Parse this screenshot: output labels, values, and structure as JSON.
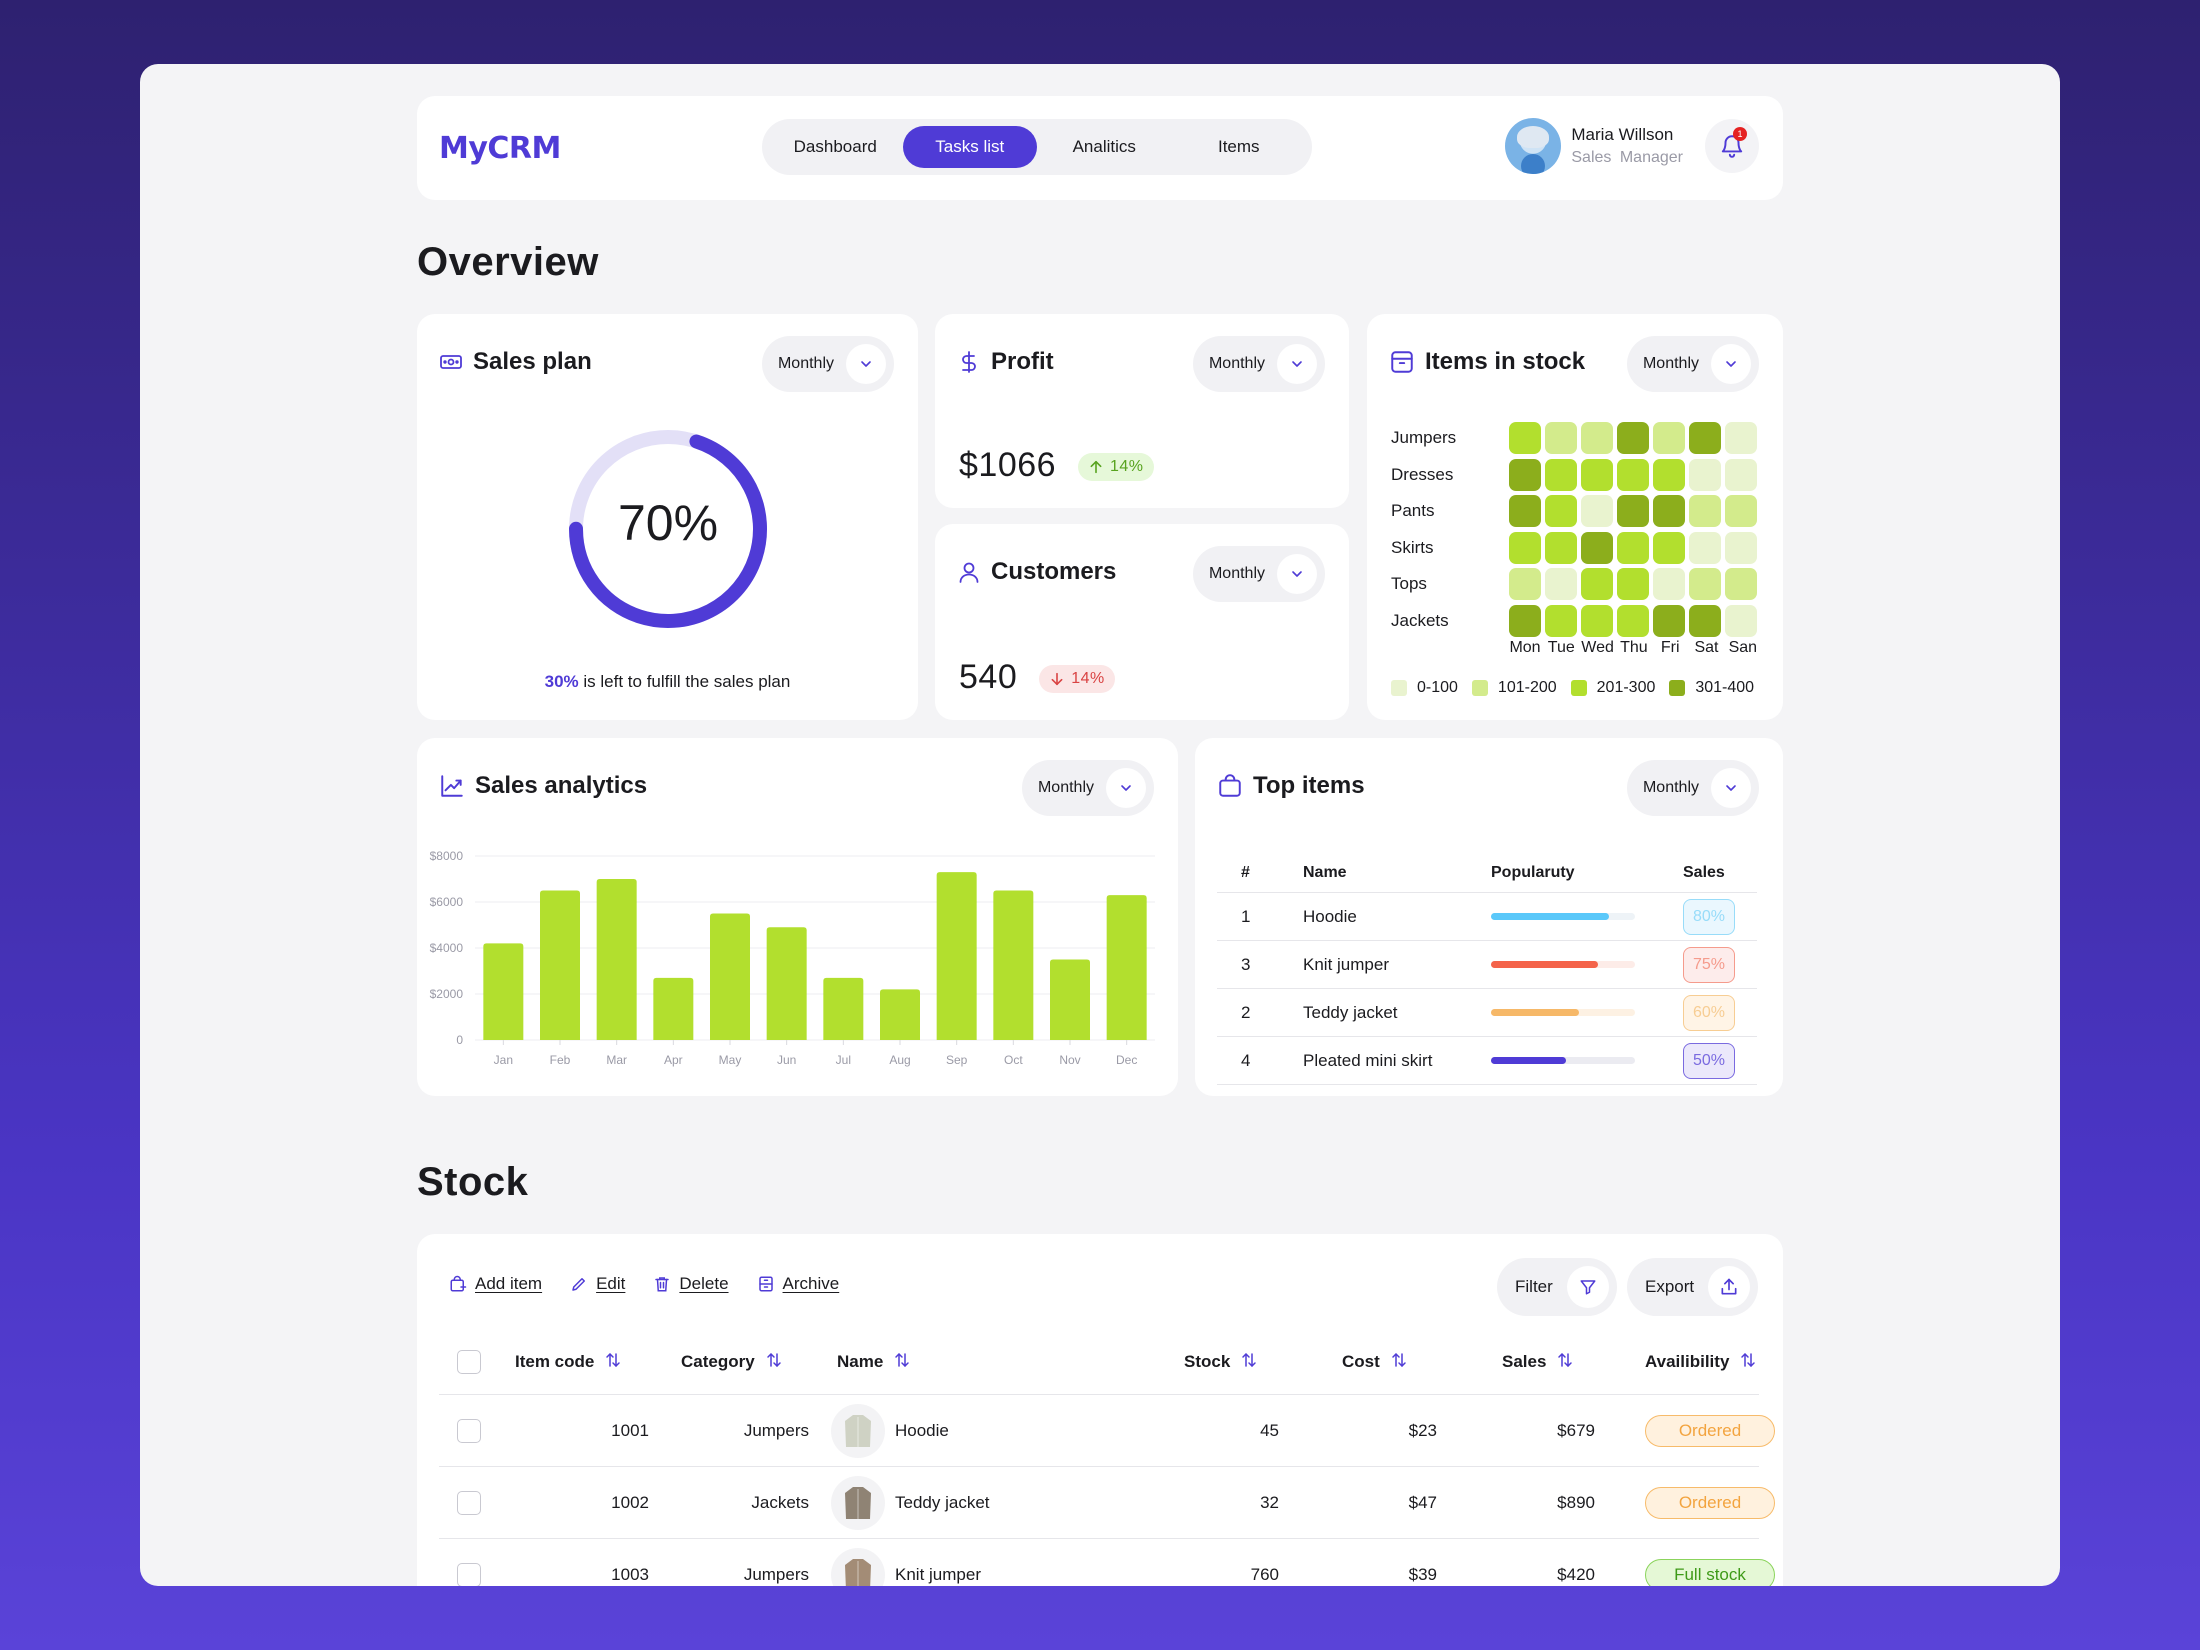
{
  "app": {
    "logo": "MyCRM"
  },
  "nav": {
    "items": [
      {
        "label": "Dashboard",
        "active": false
      },
      {
        "label": "Tasks list",
        "active": true
      },
      {
        "label": "Analitics",
        "active": false
      },
      {
        "label": "Items",
        "active": false
      }
    ]
  },
  "user": {
    "name": "Maria Willson",
    "role": "Sales Manager",
    "notifications": "1"
  },
  "overview": {
    "title": "Overview",
    "period_label": "Monthly",
    "sales_plan": {
      "title": "Sales plan",
      "percent": 70,
      "percent_label": "70%",
      "left_value": "30%",
      "left_text": " is left to fulfill the sales plan"
    },
    "profit": {
      "title": "Profit",
      "value": "$1066",
      "delta": "14%",
      "direction": "up"
    },
    "customers": {
      "title": "Customers",
      "value": "540",
      "delta": "14%",
      "direction": "down"
    },
    "items_in_stock": {
      "title": "Items in stock",
      "rows": [
        "Jumpers",
        "Dresses",
        "Pants",
        "Skirts",
        "Tops",
        "Jackets"
      ],
      "days": [
        "Mon",
        "Tue",
        "Wed",
        "Thu",
        "Fri",
        "Sat",
        "San"
      ],
      "levels": [
        [
          2,
          1,
          1,
          3,
          1,
          3,
          0
        ],
        [
          3,
          2,
          2,
          2,
          2,
          0,
          0
        ],
        [
          3,
          2,
          0,
          3,
          3,
          1,
          1
        ],
        [
          2,
          2,
          3,
          2,
          2,
          0,
          0
        ],
        [
          1,
          0,
          2,
          2,
          0,
          1,
          1
        ],
        [
          3,
          2,
          2,
          2,
          3,
          3,
          0
        ]
      ],
      "legend": [
        {
          "label": "0-100",
          "color": "#e9f3cf"
        },
        {
          "label": "101-200",
          "color": "#d3eb8c"
        },
        {
          "label": "201-300",
          "color": "#b2df2e"
        },
        {
          "label": "301-400",
          "color": "#8cae1c"
        }
      ]
    },
    "sales_analytics": {
      "title": "Sales analytics"
    },
    "top_items": {
      "title": "Top items",
      "headers": {
        "rank": "#",
        "name": "Name",
        "popularity": "Popularuty",
        "sales": "Sales"
      },
      "rows": [
        {
          "rank": "1",
          "name": "Hoodie",
          "popularity": 0.82,
          "sales": "80%",
          "color": "#5ac8fa",
          "track": "#eef3f7",
          "pill_bg": "#eaf7fe",
          "pill_border": "#98dcf9"
        },
        {
          "rank": "3",
          "name": "Knit jumper",
          "popularity": 0.74,
          "sales": "75%",
          "color": "#f4634a",
          "track": "#fdece8",
          "pill_bg": "#fdeceb",
          "pill_border": "#f59b8c"
        },
        {
          "rank": "2",
          "name": "Teddy jacket",
          "popularity": 0.61,
          "sales": "60%",
          "color": "#f6b868",
          "track": "#fdf1e3",
          "pill_bg": "#fff4e6",
          "pill_border": "#f7cd93"
        },
        {
          "rank": "4",
          "name": "Pleated mini skirt",
          "popularity": 0.52,
          "sales": "50%",
          "color": "#4f3bd6",
          "track": "#ebebf1",
          "pill_bg": "#ebe8fb",
          "pill_border": "#7a6ae0"
        }
      ]
    }
  },
  "chart_data": {
    "type": "bar",
    "title": "Sales analytics",
    "categories": [
      "Jan",
      "Feb",
      "Mar",
      "Apr",
      "May",
      "Jun",
      "Jul",
      "Aug",
      "Sep",
      "Oct",
      "Nov",
      "Dec"
    ],
    "values": [
      4200,
      6500,
      7000,
      2700,
      5500,
      4900,
      2700,
      2200,
      7300,
      6500,
      3500,
      6300
    ],
    "ytick_labels": [
      "0",
      "$2000",
      "$4000",
      "$6000",
      "$8000"
    ],
    "ytick_values": [
      0,
      2000,
      4000,
      6000,
      8000
    ],
    "ylim": [
      0,
      8000
    ],
    "bar_color": "#b2df2e",
    "grid": true,
    "xlabel": "",
    "ylabel": ""
  },
  "stock": {
    "title": "Stock",
    "actions": [
      {
        "label": "Add item",
        "icon": "bag-plus-icon"
      },
      {
        "label": "Edit",
        "icon": "pencil-icon"
      },
      {
        "label": "Delete",
        "icon": "trash-icon"
      },
      {
        "label": "Archive",
        "icon": "archive-icon"
      }
    ],
    "filter_label": "Filter",
    "export_label": "Export",
    "headers": {
      "code": "Item code",
      "category": "Category",
      "name": "Name",
      "stock": "Stock",
      "cost": "Cost",
      "sales": "Sales",
      "availability": "Availibility"
    },
    "rows": [
      {
        "code": "1001",
        "category": "Jumpers",
        "name": "Hoodie",
        "stock": "45",
        "cost": "$23",
        "sales": "$679",
        "availability": "Ordered",
        "status": "ordered"
      },
      {
        "code": "1002",
        "category": "Jackets",
        "name": "Teddy jacket",
        "stock": "32",
        "cost": "$47",
        "sales": "$890",
        "availability": "Ordered",
        "status": "ordered"
      },
      {
        "code": "1003",
        "category": "Jumpers",
        "name": "Knit jumper",
        "stock": "760",
        "cost": "$39",
        "sales": "$420",
        "availability": "Full stock",
        "status": "full"
      }
    ]
  }
}
